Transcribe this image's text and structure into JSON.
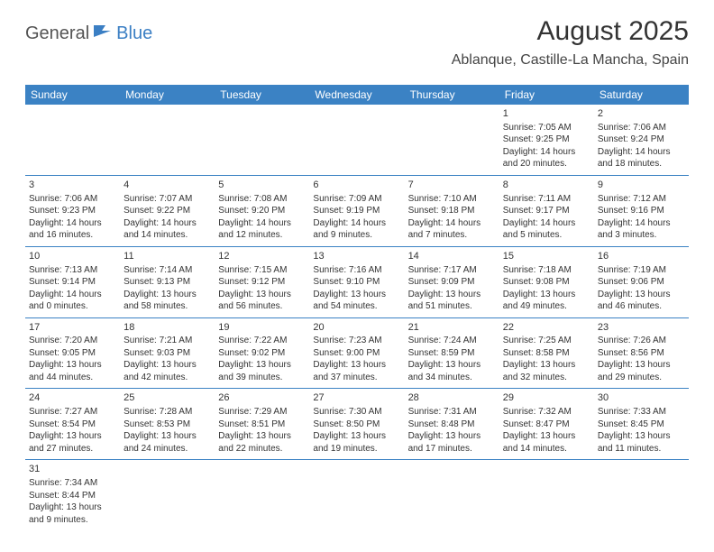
{
  "logo": {
    "part1": "General",
    "part2": "Blue"
  },
  "title": "August 2025",
  "location": "Ablanque, Castille-La Mancha, Spain",
  "day_headers": [
    "Sunday",
    "Monday",
    "Tuesday",
    "Wednesday",
    "Thursday",
    "Friday",
    "Saturday"
  ],
  "colors": {
    "header_bg": "#3b82c4",
    "header_fg": "#ffffff",
    "rule": "#3b82c4",
    "text": "#333333",
    "logo_blue": "#3b7fc4"
  },
  "weeks": [
    [
      null,
      null,
      null,
      null,
      null,
      {
        "d": "1",
        "sr": "Sunrise: 7:05 AM",
        "ss": "Sunset: 9:25 PM",
        "dl1": "Daylight: 14 hours",
        "dl2": "and 20 minutes."
      },
      {
        "d": "2",
        "sr": "Sunrise: 7:06 AM",
        "ss": "Sunset: 9:24 PM",
        "dl1": "Daylight: 14 hours",
        "dl2": "and 18 minutes."
      }
    ],
    [
      {
        "d": "3",
        "sr": "Sunrise: 7:06 AM",
        "ss": "Sunset: 9:23 PM",
        "dl1": "Daylight: 14 hours",
        "dl2": "and 16 minutes."
      },
      {
        "d": "4",
        "sr": "Sunrise: 7:07 AM",
        "ss": "Sunset: 9:22 PM",
        "dl1": "Daylight: 14 hours",
        "dl2": "and 14 minutes."
      },
      {
        "d": "5",
        "sr": "Sunrise: 7:08 AM",
        "ss": "Sunset: 9:20 PM",
        "dl1": "Daylight: 14 hours",
        "dl2": "and 12 minutes."
      },
      {
        "d": "6",
        "sr": "Sunrise: 7:09 AM",
        "ss": "Sunset: 9:19 PM",
        "dl1": "Daylight: 14 hours",
        "dl2": "and 9 minutes."
      },
      {
        "d": "7",
        "sr": "Sunrise: 7:10 AM",
        "ss": "Sunset: 9:18 PM",
        "dl1": "Daylight: 14 hours",
        "dl2": "and 7 minutes."
      },
      {
        "d": "8",
        "sr": "Sunrise: 7:11 AM",
        "ss": "Sunset: 9:17 PM",
        "dl1": "Daylight: 14 hours",
        "dl2": "and 5 minutes."
      },
      {
        "d": "9",
        "sr": "Sunrise: 7:12 AM",
        "ss": "Sunset: 9:16 PM",
        "dl1": "Daylight: 14 hours",
        "dl2": "and 3 minutes."
      }
    ],
    [
      {
        "d": "10",
        "sr": "Sunrise: 7:13 AM",
        "ss": "Sunset: 9:14 PM",
        "dl1": "Daylight: 14 hours",
        "dl2": "and 0 minutes."
      },
      {
        "d": "11",
        "sr": "Sunrise: 7:14 AM",
        "ss": "Sunset: 9:13 PM",
        "dl1": "Daylight: 13 hours",
        "dl2": "and 58 minutes."
      },
      {
        "d": "12",
        "sr": "Sunrise: 7:15 AM",
        "ss": "Sunset: 9:12 PM",
        "dl1": "Daylight: 13 hours",
        "dl2": "and 56 minutes."
      },
      {
        "d": "13",
        "sr": "Sunrise: 7:16 AM",
        "ss": "Sunset: 9:10 PM",
        "dl1": "Daylight: 13 hours",
        "dl2": "and 54 minutes."
      },
      {
        "d": "14",
        "sr": "Sunrise: 7:17 AM",
        "ss": "Sunset: 9:09 PM",
        "dl1": "Daylight: 13 hours",
        "dl2": "and 51 minutes."
      },
      {
        "d": "15",
        "sr": "Sunrise: 7:18 AM",
        "ss": "Sunset: 9:08 PM",
        "dl1": "Daylight: 13 hours",
        "dl2": "and 49 minutes."
      },
      {
        "d": "16",
        "sr": "Sunrise: 7:19 AM",
        "ss": "Sunset: 9:06 PM",
        "dl1": "Daylight: 13 hours",
        "dl2": "and 46 minutes."
      }
    ],
    [
      {
        "d": "17",
        "sr": "Sunrise: 7:20 AM",
        "ss": "Sunset: 9:05 PM",
        "dl1": "Daylight: 13 hours",
        "dl2": "and 44 minutes."
      },
      {
        "d": "18",
        "sr": "Sunrise: 7:21 AM",
        "ss": "Sunset: 9:03 PM",
        "dl1": "Daylight: 13 hours",
        "dl2": "and 42 minutes."
      },
      {
        "d": "19",
        "sr": "Sunrise: 7:22 AM",
        "ss": "Sunset: 9:02 PM",
        "dl1": "Daylight: 13 hours",
        "dl2": "and 39 minutes."
      },
      {
        "d": "20",
        "sr": "Sunrise: 7:23 AM",
        "ss": "Sunset: 9:00 PM",
        "dl1": "Daylight: 13 hours",
        "dl2": "and 37 minutes."
      },
      {
        "d": "21",
        "sr": "Sunrise: 7:24 AM",
        "ss": "Sunset: 8:59 PM",
        "dl1": "Daylight: 13 hours",
        "dl2": "and 34 minutes."
      },
      {
        "d": "22",
        "sr": "Sunrise: 7:25 AM",
        "ss": "Sunset: 8:58 PM",
        "dl1": "Daylight: 13 hours",
        "dl2": "and 32 minutes."
      },
      {
        "d": "23",
        "sr": "Sunrise: 7:26 AM",
        "ss": "Sunset: 8:56 PM",
        "dl1": "Daylight: 13 hours",
        "dl2": "and 29 minutes."
      }
    ],
    [
      {
        "d": "24",
        "sr": "Sunrise: 7:27 AM",
        "ss": "Sunset: 8:54 PM",
        "dl1": "Daylight: 13 hours",
        "dl2": "and 27 minutes."
      },
      {
        "d": "25",
        "sr": "Sunrise: 7:28 AM",
        "ss": "Sunset: 8:53 PM",
        "dl1": "Daylight: 13 hours",
        "dl2": "and 24 minutes."
      },
      {
        "d": "26",
        "sr": "Sunrise: 7:29 AM",
        "ss": "Sunset: 8:51 PM",
        "dl1": "Daylight: 13 hours",
        "dl2": "and 22 minutes."
      },
      {
        "d": "27",
        "sr": "Sunrise: 7:30 AM",
        "ss": "Sunset: 8:50 PM",
        "dl1": "Daylight: 13 hours",
        "dl2": "and 19 minutes."
      },
      {
        "d": "28",
        "sr": "Sunrise: 7:31 AM",
        "ss": "Sunset: 8:48 PM",
        "dl1": "Daylight: 13 hours",
        "dl2": "and 17 minutes."
      },
      {
        "d": "29",
        "sr": "Sunrise: 7:32 AM",
        "ss": "Sunset: 8:47 PM",
        "dl1": "Daylight: 13 hours",
        "dl2": "and 14 minutes."
      },
      {
        "d": "30",
        "sr": "Sunrise: 7:33 AM",
        "ss": "Sunset: 8:45 PM",
        "dl1": "Daylight: 13 hours",
        "dl2": "and 11 minutes."
      }
    ],
    [
      {
        "d": "31",
        "sr": "Sunrise: 7:34 AM",
        "ss": "Sunset: 8:44 PM",
        "dl1": "Daylight: 13 hours",
        "dl2": "and 9 minutes."
      },
      null,
      null,
      null,
      null,
      null,
      null
    ]
  ]
}
